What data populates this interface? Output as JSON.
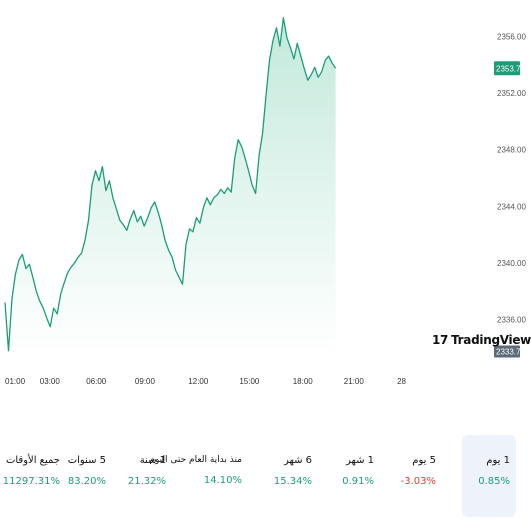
{
  "chart_data": {
    "type": "area",
    "x_ticks": [
      "01:00",
      "03:00",
      "06:00",
      "09:00",
      "12:00",
      "15:00",
      "18:00",
      "21:00",
      "28"
    ],
    "y_ticks": [
      "2336.00",
      "2340.00",
      "2344.00",
      "2348.00",
      "2352.00",
      "2356.00"
    ],
    "ylim": [
      2333.5,
      2357.5
    ],
    "current_price": "2353.74",
    "low_marker": "2333.75",
    "accent_color": "#1b9e77",
    "fill_top_color": "#bfe8d9",
    "series": [
      {
        "values": [
          {
            "x": 0.0,
            "y": 2337.2
          },
          {
            "x": 0.15,
            "y": 2333.8
          },
          {
            "x": 0.3,
            "y": 2337.5
          },
          {
            "x": 0.45,
            "y": 2339.2
          },
          {
            "x": 0.6,
            "y": 2340.2
          },
          {
            "x": 0.75,
            "y": 2340.6
          },
          {
            "x": 0.9,
            "y": 2339.6
          },
          {
            "x": 1.05,
            "y": 2339.9
          },
          {
            "x": 1.2,
            "y": 2339.0
          },
          {
            "x": 1.35,
            "y": 2338.0
          },
          {
            "x": 1.5,
            "y": 2337.3
          },
          {
            "x": 1.65,
            "y": 2336.8
          },
          {
            "x": 1.8,
            "y": 2336.1
          },
          {
            "x": 1.95,
            "y": 2335.5
          },
          {
            "x": 2.1,
            "y": 2336.8
          },
          {
            "x": 2.25,
            "y": 2336.4
          },
          {
            "x": 2.4,
            "y": 2337.8
          },
          {
            "x": 2.55,
            "y": 2338.6
          },
          {
            "x": 2.7,
            "y": 2339.3
          },
          {
            "x": 2.85,
            "y": 2339.7
          },
          {
            "x": 3.0,
            "y": 2340.0
          },
          {
            "x": 3.15,
            "y": 2340.4
          },
          {
            "x": 3.3,
            "y": 2340.7
          },
          {
            "x": 3.45,
            "y": 2341.6
          },
          {
            "x": 3.6,
            "y": 2343.0
          },
          {
            "x": 3.75,
            "y": 2345.5
          },
          {
            "x": 3.9,
            "y": 2346.5
          },
          {
            "x": 4.05,
            "y": 2345.8
          },
          {
            "x": 4.2,
            "y": 2346.8
          },
          {
            "x": 4.35,
            "y": 2345.1
          },
          {
            "x": 4.5,
            "y": 2345.8
          },
          {
            "x": 4.65,
            "y": 2344.6
          },
          {
            "x": 4.8,
            "y": 2343.8
          },
          {
            "x": 4.95,
            "y": 2343.0
          },
          {
            "x": 5.1,
            "y": 2342.7
          },
          {
            "x": 5.25,
            "y": 2342.3
          },
          {
            "x": 5.4,
            "y": 2343.1
          },
          {
            "x": 5.55,
            "y": 2343.7
          },
          {
            "x": 5.7,
            "y": 2342.9
          },
          {
            "x": 5.85,
            "y": 2343.3
          },
          {
            "x": 6.0,
            "y": 2342.6
          },
          {
            "x": 6.15,
            "y": 2343.2
          },
          {
            "x": 6.3,
            "y": 2343.9
          },
          {
            "x": 6.45,
            "y": 2344.3
          },
          {
            "x": 6.6,
            "y": 2343.6
          },
          {
            "x": 6.75,
            "y": 2342.7
          },
          {
            "x": 6.9,
            "y": 2341.6
          },
          {
            "x": 7.05,
            "y": 2340.9
          },
          {
            "x": 7.2,
            "y": 2340.4
          },
          {
            "x": 7.35,
            "y": 2339.5
          },
          {
            "x": 7.5,
            "y": 2339.0
          },
          {
            "x": 7.65,
            "y": 2338.5
          },
          {
            "x": 7.8,
            "y": 2341.3
          },
          {
            "x": 7.95,
            "y": 2342.4
          },
          {
            "x": 8.1,
            "y": 2342.2
          },
          {
            "x": 8.25,
            "y": 2343.2
          },
          {
            "x": 8.4,
            "y": 2342.8
          },
          {
            "x": 8.55,
            "y": 2343.9
          },
          {
            "x": 8.7,
            "y": 2344.6
          },
          {
            "x": 8.85,
            "y": 2344.1
          },
          {
            "x": 9.0,
            "y": 2344.6
          },
          {
            "x": 9.15,
            "y": 2344.8
          },
          {
            "x": 9.3,
            "y": 2345.2
          },
          {
            "x": 9.45,
            "y": 2344.9
          },
          {
            "x": 9.6,
            "y": 2345.3
          },
          {
            "x": 9.75,
            "y": 2345.0
          },
          {
            "x": 9.9,
            "y": 2347.4
          },
          {
            "x": 10.05,
            "y": 2348.7
          },
          {
            "x": 10.2,
            "y": 2348.2
          },
          {
            "x": 10.35,
            "y": 2347.4
          },
          {
            "x": 10.5,
            "y": 2346.5
          },
          {
            "x": 10.65,
            "y": 2345.5
          },
          {
            "x": 10.8,
            "y": 2344.9
          },
          {
            "x": 10.95,
            "y": 2347.6
          },
          {
            "x": 11.1,
            "y": 2349.1
          },
          {
            "x": 11.25,
            "y": 2351.8
          },
          {
            "x": 11.4,
            "y": 2354.3
          },
          {
            "x": 11.55,
            "y": 2355.7
          },
          {
            "x": 11.7,
            "y": 2356.6
          },
          {
            "x": 11.85,
            "y": 2355.3
          },
          {
            "x": 12.0,
            "y": 2357.3
          },
          {
            "x": 12.15,
            "y": 2355.9
          },
          {
            "x": 12.3,
            "y": 2355.2
          },
          {
            "x": 12.45,
            "y": 2354.4
          },
          {
            "x": 12.6,
            "y": 2355.5
          },
          {
            "x": 12.75,
            "y": 2354.6
          },
          {
            "x": 12.9,
            "y": 2353.7
          },
          {
            "x": 13.05,
            "y": 2352.9
          },
          {
            "x": 13.2,
            "y": 2353.3
          },
          {
            "x": 13.35,
            "y": 2353.8
          },
          {
            "x": 13.5,
            "y": 2353.1
          },
          {
            "x": 13.65,
            "y": 2353.5
          },
          {
            "x": 13.8,
            "y": 2354.3
          },
          {
            "x": 13.95,
            "y": 2354.6
          },
          {
            "x": 14.1,
            "y": 2354.1
          },
          {
            "x": 14.25,
            "y": 2353.74
          }
        ]
      }
    ]
  },
  "tv_logo": {
    "text": "TradingView",
    "icon": "tradingview-logo-icon"
  },
  "stats": [
    {
      "label": "1 يوم",
      "value": "0.85%",
      "color": "#1b9e77",
      "selected": true
    },
    {
      "label": "5 يوم",
      "value": "-3.03%",
      "color": "#e53935",
      "selected": false
    },
    {
      "label": "1 شهر",
      "value": "0.91%",
      "color": "#1b9e77",
      "selected": false
    },
    {
      "label": "6 شهر",
      "value": "15.34%",
      "color": "#1b9e77",
      "selected": false
    },
    {
      "label": "منذ بداية العام حتى اليوم",
      "value": "14.10%",
      "color": "#1b9e77",
      "selected": false
    },
    {
      "label": "1 سنة",
      "value": "21.32%",
      "color": "#1b9e77",
      "selected": false
    },
    {
      "label": "5 سنوات",
      "value": "83.20%",
      "color": "#1b9e77",
      "selected": false
    },
    {
      "label": "جميع الأوقات",
      "value": "11297.31%",
      "color": "#1b9e77",
      "selected": false
    }
  ]
}
